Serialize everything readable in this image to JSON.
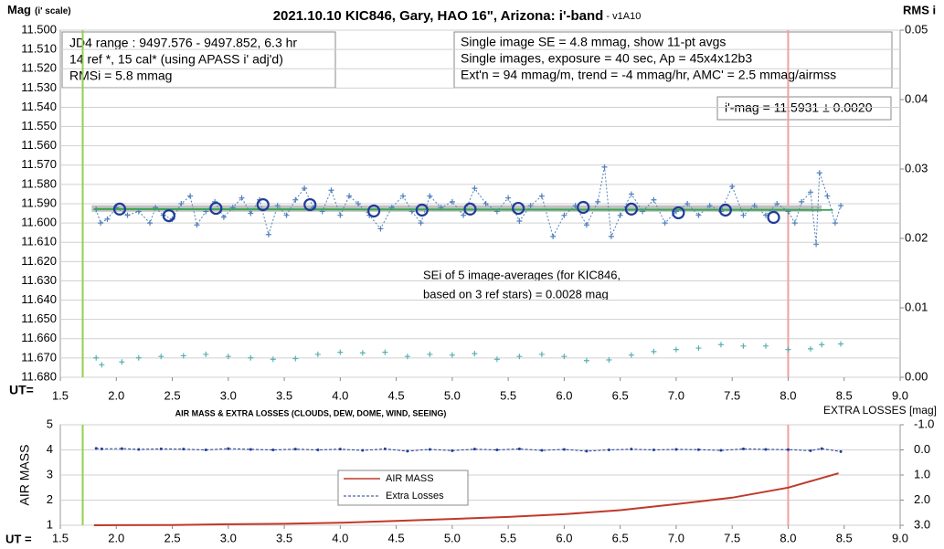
{
  "chart_data": [
    {
      "type": "line",
      "title": "2021.10.10 KIC846, Gary, HAO 16\", Arizona: i'-band",
      "title_note": " - v1A10",
      "y_label": "Mag",
      "y_label_note": "(i' scale)",
      "y2_label": "RMS i",
      "x_label": "UT=",
      "xlim": [
        1.5,
        9.0
      ],
      "xticks": [
        1.5,
        {
          "value": 2,
          "label": "2.0"
        },
        2.5,
        {
          "value": 3,
          "label": "3.0"
        },
        3.5,
        {
          "value": 4,
          "label": "4.0"
        },
        4.5,
        {
          "value": 5,
          "label": "5.0"
        },
        5.5,
        {
          "value": 6,
          "label": "6.0"
        },
        6.5,
        {
          "value": 7,
          "label": "7.0"
        },
        7.5,
        {
          "value": 8,
          "label": "8.0"
        },
        8.5,
        {
          "value": 9,
          "label": "9.0"
        }
      ],
      "ylim": [
        11.5,
        11.68
      ],
      "y_reversed": true,
      "yticks": [
        {
          "value": 11.5,
          "label": "11.500"
        },
        {
          "value": 11.51,
          "label": "11.510"
        },
        {
          "value": 11.52,
          "label": "11.520"
        },
        {
          "value": 11.53,
          "label": "11.530"
        },
        {
          "value": 11.54,
          "label": "11.540"
        },
        {
          "value": 11.55,
          "label": "11.550"
        },
        {
          "value": 11.56,
          "label": "11.560"
        },
        {
          "value": 11.57,
          "label": "11.570"
        },
        {
          "value": 11.58,
          "label": "11.580"
        },
        {
          "value": 11.59,
          "label": "11.590"
        },
        {
          "value": 11.6,
          "label": "11.600"
        },
        {
          "value": 11.61,
          "label": "11.610"
        },
        {
          "value": 11.62,
          "label": "11.620"
        },
        {
          "value": 11.63,
          "label": "11.630"
        },
        {
          "value": 11.64,
          "label": "11.640"
        },
        {
          "value": 11.65,
          "label": "11.650"
        },
        {
          "value": 11.66,
          "label": "11.660"
        },
        {
          "value": 11.67,
          "label": "11.670"
        },
        {
          "value": 11.68,
          "label": "11.680"
        }
      ],
      "y2lim": [
        0,
        0.05
      ],
      "y2_reversed": false,
      "y2ticks": [
        {
          "value": 0,
          "label": "0.00"
        },
        0.01,
        0.02,
        0.03,
        0.04,
        0.05
      ],
      "grid": true,
      "vlines": [
        {
          "x": 1.7,
          "color": "#92d050"
        },
        {
          "x": 8.0,
          "color": "#f2a0a0"
        }
      ],
      "series": [
        {
          "color": "#c0c0c0",
          "line": "band",
          "marker": "none",
          "x": [
            1.78,
            8.3
          ],
          "values": [
            11.5925,
            11.5925
          ]
        },
        {
          "color": "#4f81bd",
          "line": "dotted",
          "marker": "plus",
          "x": [
            1.82,
            1.86,
            1.92,
            2.0,
            2.1,
            2.2,
            2.3,
            2.35,
            2.42,
            2.5,
            2.58,
            2.66,
            2.72,
            2.8,
            2.88,
            2.96,
            3.04,
            3.12,
            3.2,
            3.28,
            3.36,
            3.44,
            3.52,
            3.6,
            3.68,
            3.76,
            3.84,
            3.92,
            4.0,
            4.08,
            4.16,
            4.26,
            4.36,
            4.46,
            4.56,
            4.64,
            4.72,
            4.8,
            4.9,
            5.0,
            5.1,
            5.2,
            5.3,
            5.4,
            5.5,
            5.6,
            5.7,
            5.8,
            5.9,
            6.0,
            6.1,
            6.2,
            6.3,
            6.36,
            6.42,
            6.5,
            6.6,
            6.7,
            6.8,
            6.9,
            7.0,
            7.1,
            7.2,
            7.3,
            7.4,
            7.5,
            7.6,
            7.7,
            7.8,
            7.9,
            8.0,
            8.06,
            8.12,
            8.2,
            8.25,
            8.28,
            8.35,
            8.42,
            8.47
          ],
          "values": [
            11.593,
            11.6,
            11.598,
            11.592,
            11.596,
            11.594,
            11.6,
            11.592,
            11.596,
            11.598,
            11.59,
            11.586,
            11.601,
            11.594,
            11.589,
            11.597,
            11.592,
            11.587,
            11.595,
            11.588,
            11.606,
            11.591,
            11.596,
            11.588,
            11.582,
            11.592,
            11.594,
            11.583,
            11.596,
            11.586,
            11.59,
            11.596,
            11.603,
            11.592,
            11.586,
            11.594,
            11.6,
            11.586,
            11.592,
            11.589,
            11.596,
            11.582,
            11.59,
            11.594,
            11.587,
            11.599,
            11.591,
            11.586,
            11.607,
            11.596,
            11.591,
            11.601,
            11.589,
            11.571,
            11.607,
            11.596,
            11.585,
            11.594,
            11.588,
            11.6,
            11.594,
            11.59,
            11.596,
            11.591,
            11.594,
            11.581,
            11.596,
            11.591,
            11.596,
            11.59,
            11.594,
            11.6,
            11.589,
            11.584,
            11.611,
            11.574,
            11.586,
            11.6,
            11.591
          ]
        },
        {
          "color": "#3aa655",
          "line": "solid",
          "marker": "none",
          "x": [
            1.8,
            8.4
          ],
          "values": [
            11.5928,
            11.5932
          ]
        },
        {
          "color": "#1f3c99",
          "line": "none",
          "marker": "circle",
          "x": [
            2.03,
            2.47,
            2.89,
            3.31,
            3.73,
            4.3,
            4.73,
            5.16,
            5.59,
            6.17,
            6.6,
            7.02,
            7.44,
            7.87
          ],
          "values": [
            11.5928,
            11.5962,
            11.5924,
            11.5905,
            11.5905,
            11.5938,
            11.5933,
            11.5928,
            11.5924,
            11.5919,
            11.5928,
            11.5947,
            11.5933,
            11.5971
          ]
        },
        {
          "color": "#5ab0b0",
          "line": "none",
          "marker": "plus",
          "axis": "y2",
          "x": [
            1.82,
            1.87,
            2.05,
            2.2,
            2.4,
            2.6,
            2.8,
            3.0,
            3.2,
            3.4,
            3.6,
            3.8,
            4.0,
            4.2,
            4.4,
            4.6,
            4.8,
            5.0,
            5.2,
            5.4,
            5.6,
            5.8,
            6.0,
            6.2,
            6.4,
            6.6,
            6.8,
            7.0,
            7.2,
            7.4,
            7.6,
            7.8,
            8.0,
            8.2,
            8.3,
            8.47
          ],
          "values": [
            0.0028,
            0.0018,
            0.0022,
            0.0028,
            0.003,
            0.0031,
            0.0033,
            0.003,
            0.0028,
            0.0026,
            0.0027,
            0.0033,
            0.0036,
            0.0035,
            0.0036,
            0.003,
            0.0033,
            0.0032,
            0.0034,
            0.0026,
            0.003,
            0.0033,
            0.003,
            0.0024,
            0.0025,
            0.0032,
            0.0037,
            0.004,
            0.0042,
            0.0047,
            0.0045,
            0.0045,
            0.004,
            0.0041,
            0.0047,
            0.0048
          ]
        }
      ],
      "annotations": {
        "info_box": [
          "JD4 range : 9497.576 - 9497.852, 6.3  hr",
          "14 ref *, 15 cal* (using APASS i' adj'd)",
          "RMSi = 5.8 mmag"
        ],
        "settings_box": [
          "Single image SE = 4.8 mmag, show 11-pt avgs",
          "Single images, exposure = 40 sec, Ap = 45x4x12b3",
          "Ext'n = 94 mmag/m, trend = -4 mmag/hr, AMC' = 2.5 mmag/airmss"
        ],
        "result_box": [
          "i'-mag = 11.5931 ± 0.0020"
        ],
        "note": [
          "SEi of 5 image-averages (for KIC846,",
          "based on 3 ref stars) = 0.0028 mag"
        ]
      }
    },
    {
      "type": "line",
      "title": "AIR MASS & EXTRA LOSSES (CLOUDS, DEW, DOME, WIND, SEEING)",
      "y_label": "AIR MASS",
      "y2_label": "EXTRA LOSSES [mag]",
      "x_label": "UT =",
      "xlim": [
        1.5,
        9.0
      ],
      "xticks": [
        1.5,
        {
          "value": 2,
          "label": "2.0"
        },
        2.5,
        {
          "value": 3,
          "label": "3.0"
        },
        3.5,
        {
          "value": 4,
          "label": "4.0"
        },
        4.5,
        {
          "value": 5,
          "label": "5.0"
        },
        5.5,
        {
          "value": 6,
          "label": "6.0"
        },
        6.5,
        {
          "value": 7,
          "label": "7.0"
        },
        7.5,
        {
          "value": 8,
          "label": "8.0"
        },
        8.5,
        {
          "value": 9,
          "label": "9.0"
        }
      ],
      "ylim": [
        1,
        5
      ],
      "y_reversed": false,
      "yticks": [
        1,
        2,
        3,
        4,
        5
      ],
      "y2lim": [
        -1,
        3
      ],
      "y2_reversed": true,
      "y2ticks": [
        {
          "value": -1,
          "label": "-1.0"
        },
        {
          "value": 0,
          "label": "0.0"
        },
        {
          "value": 1,
          "label": "1.0"
        },
        {
          "value": 2,
          "label": "2.0"
        },
        {
          "value": 3,
          "label": "3.0"
        }
      ],
      "grid": true,
      "legend": "center",
      "vlines": [
        {
          "x": 1.7,
          "color": "#92d050"
        },
        {
          "x": 8.0,
          "color": "#f2a0a0"
        }
      ],
      "series": [
        {
          "name": "AIR MASS",
          "color": "#c0392b",
          "line": "solid",
          "marker": "none",
          "x": [
            1.8,
            2.5,
            3.0,
            3.5,
            4.0,
            4.5,
            5.0,
            5.5,
            6.0,
            6.5,
            7.0,
            7.5,
            8.0,
            8.45
          ],
          "values": [
            1.0,
            1.01,
            1.04,
            1.06,
            1.1,
            1.17,
            1.25,
            1.33,
            1.44,
            1.6,
            1.84,
            2.1,
            2.5,
            3.07
          ]
        },
        {
          "name": "Extra Losses",
          "color": "#1f3c99",
          "line": "dashed",
          "marker": "dot",
          "axis": "y2",
          "x": [
            1.82,
            1.87,
            2.05,
            2.2,
            2.4,
            2.6,
            2.8,
            3.0,
            3.2,
            3.4,
            3.6,
            3.8,
            4.0,
            4.2,
            4.4,
            4.6,
            4.8,
            5.0,
            5.2,
            5.4,
            5.6,
            5.8,
            6.0,
            6.2,
            6.4,
            6.6,
            6.8,
            7.0,
            7.2,
            7.4,
            7.6,
            7.8,
            8.0,
            8.2,
            8.3,
            8.47
          ],
          "values": [
            -0.06,
            -0.04,
            -0.05,
            -0.02,
            -0.04,
            -0.03,
            0.0,
            -0.05,
            -0.02,
            0.0,
            -0.03,
            0.0,
            -0.03,
            0.02,
            -0.04,
            0.05,
            -0.02,
            0.03,
            -0.03,
            0.0,
            -0.04,
            0.02,
            -0.02,
            0.05,
            0.0,
            -0.03,
            0.0,
            -0.02,
            -0.01,
            0.02,
            -0.04,
            -0.02,
            -0.01,
            0.03,
            -0.05,
            0.07
          ]
        }
      ]
    }
  ]
}
